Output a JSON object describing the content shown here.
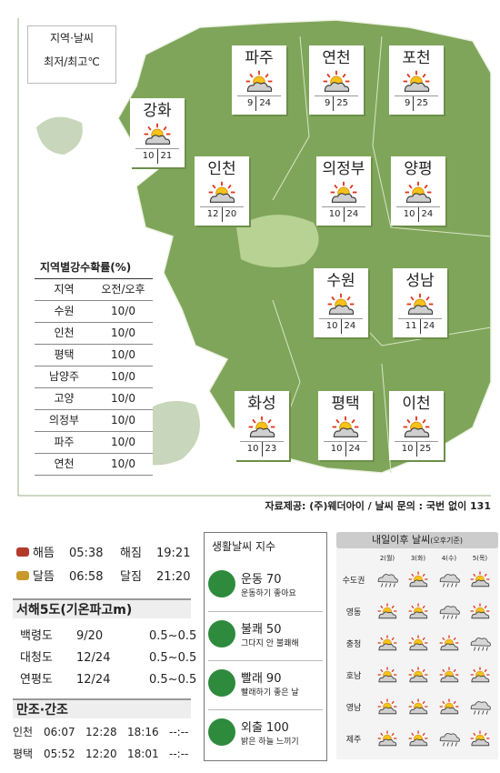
{
  "legend": {
    "line1": "지역·날씨",
    "line2": "최저/최고℃"
  },
  "cities": [
    {
      "name": "파주",
      "min": 9,
      "max": 24
    },
    {
      "name": "연천",
      "min": 9,
      "max": 25
    },
    {
      "name": "포천",
      "min": 9,
      "max": 25
    },
    {
      "name": "강화",
      "min": 10,
      "max": 21
    },
    {
      "name": "인천",
      "min": 12,
      "max": 20
    },
    {
      "name": "의정부",
      "min": 10,
      "max": 24
    },
    {
      "name": "양평",
      "min": 10,
      "max": 24
    },
    {
      "name": "수원",
      "min": 10,
      "max": 24
    },
    {
      "name": "성남",
      "min": 11,
      "max": 24
    },
    {
      "name": "화성",
      "min": 10,
      "max": 23
    },
    {
      "name": "평택",
      "min": 10,
      "max": 24
    },
    {
      "name": "이천",
      "min": 10,
      "max": 25
    }
  ],
  "precipitation": {
    "title": "지역별강수확률(%)",
    "header": [
      "지역",
      "오전/오후"
    ],
    "rows": [
      [
        "수원",
        "10/0"
      ],
      [
        "인천",
        "10/0"
      ],
      [
        "평택",
        "10/0"
      ],
      [
        "남양주",
        "10/0"
      ],
      [
        "고양",
        "10/0"
      ],
      [
        "의정부",
        "10/0"
      ],
      [
        "파주",
        "10/0"
      ],
      [
        "연천",
        "10/0"
      ]
    ]
  },
  "source": "자료제공: (주)웨더아이 / 날씨 문의 : 국번 없이 131",
  "sun_moon": [
    {
      "rise_label": "해뜸",
      "rise": "05:38",
      "set_label": "해짐",
      "set": "19:21"
    },
    {
      "rise_label": "달뜸",
      "rise": "06:58",
      "set_label": "달짐",
      "set": "21:20"
    }
  ],
  "islands": {
    "title": "서해5도(기온파고m)",
    "rows": [
      [
        "백령도",
        "9/20",
        "0.5~0.5"
      ],
      [
        "대청도",
        "12/24",
        "0.5~0.5"
      ],
      [
        "연평도",
        "12/24",
        "0.5~0.5"
      ]
    ]
  },
  "tides": {
    "title": "만조·간조",
    "rows": [
      [
        "인천",
        "06:07",
        "12:28",
        "18:16",
        "--:--"
      ],
      [
        "평택",
        "05:52",
        "12:20",
        "18:01",
        "--:--"
      ]
    ]
  },
  "life_index": {
    "title": "생활날씨 지수",
    "items": [
      {
        "name": "운동",
        "value": 70,
        "desc": "운동하기 좋아요"
      },
      {
        "name": "불쾌",
        "value": 50,
        "desc": "그다지 안 불쾌해"
      },
      {
        "name": "빨래",
        "value": 90,
        "desc": "빨래하기 좋은 날"
      },
      {
        "name": "외출",
        "value": 100,
        "desc": "밝은 하늘 느끼기"
      }
    ]
  },
  "forecast": {
    "title": "내일이후 날씨",
    "subtitle": "(오후기준)",
    "days": [
      "2(월)",
      "3(화)",
      "4(수)",
      "5(목)"
    ],
    "regions": [
      {
        "name": "수도권",
        "icons": [
          "cloud-rain",
          "sun-cloud",
          "cloud-rain",
          "sun-cloud"
        ]
      },
      {
        "name": "영동",
        "icons": [
          "sun-cloud",
          "sun-cloud",
          "cloud-rain",
          "sun-cloud"
        ]
      },
      {
        "name": "충청",
        "icons": [
          "sun-cloud",
          "sun-cloud",
          "sun-cloud",
          "cloud-rain"
        ]
      },
      {
        "name": "호남",
        "icons": [
          "sun-cloud",
          "sun-cloud",
          "sun-cloud",
          "sun-cloud"
        ]
      },
      {
        "name": "영남",
        "icons": [
          "sun-cloud",
          "sun-cloud",
          "sun-cloud",
          "cloud-rain"
        ]
      },
      {
        "name": "제주",
        "icons": [
          "sun-cloud",
          "sun-cloud",
          "cloud-rain",
          "sun-cloud"
        ]
      }
    ]
  }
}
